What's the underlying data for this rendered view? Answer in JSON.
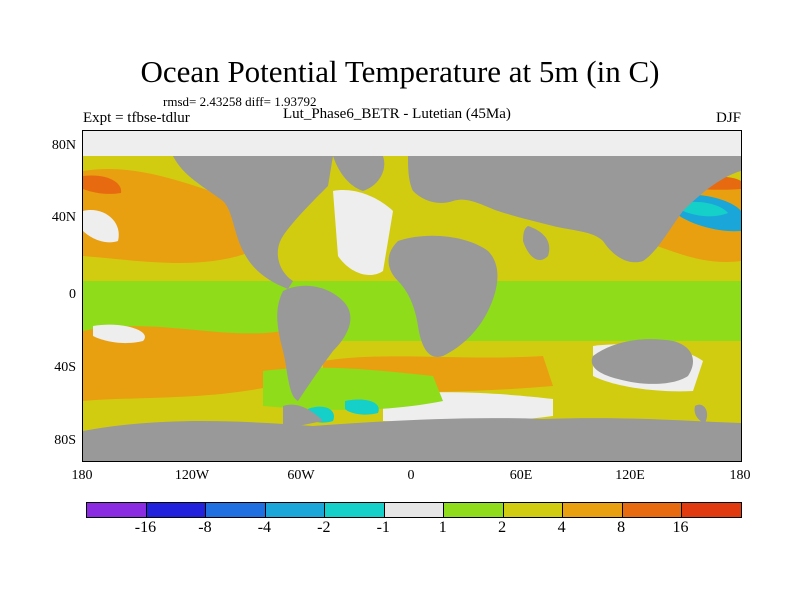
{
  "title": "Ocean Potential Temperature at 5m (in C)",
  "stats": "rmsd= 2.43258  diff= 1.93792",
  "experiment": "Expt = tfbse-tdlur",
  "subtitle": "Lut_Phase6_BETR - Lutetian (45Ma)",
  "season": "DJF",
  "axes": {
    "lat_labels": [
      "80N",
      "40N",
      "0",
      "40S",
      "80S"
    ],
    "lon_labels": [
      "180",
      "120W",
      "60W",
      "0",
      "60E",
      "120E",
      "180"
    ]
  },
  "colorbar": {
    "labels": [
      "-16",
      "-8",
      "-4",
      "-2",
      "-1",
      "1",
      "2",
      "4",
      "8",
      "16"
    ],
    "colors": [
      "#8a2be2",
      "#2222dd",
      "#1f6fe0",
      "#1aa6d8",
      "#14d0c8",
      "#e6e6e6",
      "#8fdc1a",
      "#d2cc10",
      "#e8a010",
      "#e86a10",
      "#e03a10"
    ]
  },
  "palette": {
    "land": "#999999",
    "white": "#eeeeee",
    "green": "#8fdc1a",
    "yellow": "#d2cc10",
    "orange": "#e8a010",
    "dark_orange": "#e86a10",
    "cyan": "#14d0c8",
    "blue": "#1aa6d8"
  },
  "chart_data": {
    "type": "heatmap",
    "title": "Ocean Potential Temperature at 5m (in C)",
    "field": "temperature difference",
    "units": "C",
    "rmsd": 2.43258,
    "diff": 1.93792,
    "lat_range": [
      -90,
      90
    ],
    "lon_range": [
      -180,
      180
    ],
    "contour_levels": [
      -16,
      -8,
      -4,
      -2,
      -1,
      1,
      2,
      4,
      8,
      16
    ]
  }
}
